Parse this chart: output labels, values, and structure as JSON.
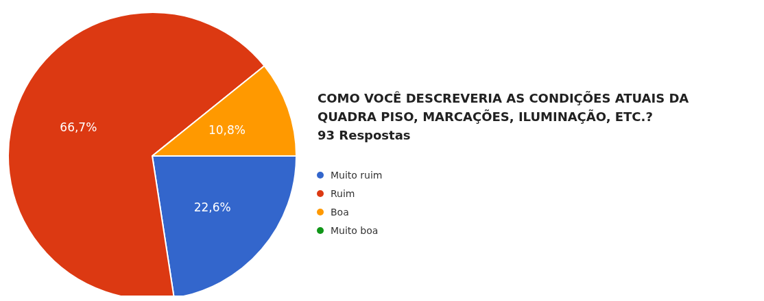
{
  "chart_data": {
    "type": "pie",
    "title": "COMO VOCÊ DESCREVERIA AS CONDIÇÕES ATUAIS DA QUADRA PISO, MARCAÇÕES, ILUMINAÇÃO, ETC.?",
    "subtitle": "93 Respostas",
    "categories": [
      "Muito ruim",
      "Ruim",
      "Boa",
      "Muito boa"
    ],
    "values": [
      22.6,
      66.7,
      10.8,
      0
    ],
    "colors": [
      "#3366cc",
      "#dc3912",
      "#ff9900",
      "#109618"
    ],
    "value_labels": [
      "22,6%",
      "66,7%",
      "10,8%",
      null
    ],
    "legend": "right"
  }
}
